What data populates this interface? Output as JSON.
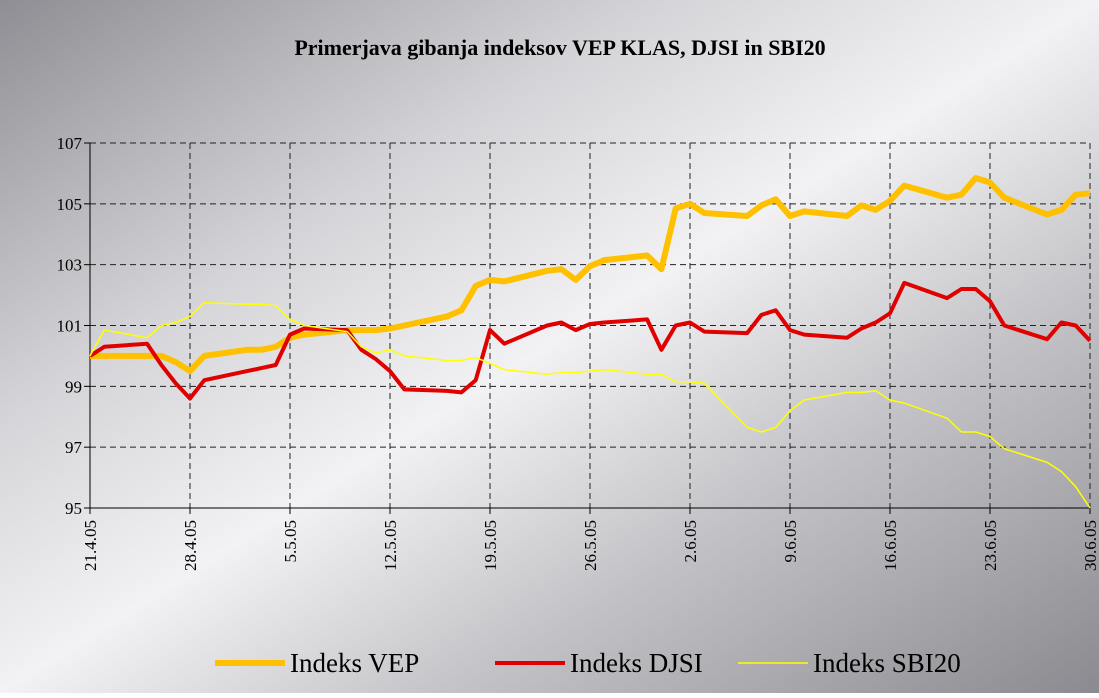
{
  "chart_data": {
    "type": "line",
    "title": "Primerjava gibanja indeksov VEP KLAS, DJSI in SBI20",
    "x": [
      "21.4.05",
      "22.4.05",
      "25.4.05",
      "26.4.05",
      "27.4.05",
      "28.4.05",
      "29.4.05",
      "2.5.05",
      "3.5.05",
      "4.5.05",
      "5.5.05",
      "6.5.05",
      "9.5.05",
      "10.5.05",
      "11.5.05",
      "12.5.05",
      "13.5.05",
      "16.5.05",
      "17.5.05",
      "18.5.05",
      "19.5.05",
      "20.5.05",
      "23.5.05",
      "24.5.05",
      "25.5.05",
      "26.5.05",
      "27.5.05",
      "30.5.05",
      "31.5.05",
      "1.6.05",
      "2.6.05",
      "3.6.05",
      "6.6.05",
      "7.6.05",
      "8.6.05",
      "9.6.05",
      "10.6.05",
      "13.6.05",
      "14.6.05",
      "15.6.05",
      "16.6.05",
      "17.6.05",
      "20.6.05",
      "21.6.05",
      "22.6.05",
      "23.6.05",
      "24.6.05",
      "27.6.05",
      "28.6.05",
      "29.6.05",
      "30.6.05"
    ],
    "series": [
      {
        "name": "Indeks VEP",
        "color": "#ffc000",
        "width": 6,
        "values": [
          100,
          100,
          100,
          100,
          99.8,
          99.5,
          100.0,
          100.2,
          100.2,
          100.3,
          100.6,
          100.7,
          100.85,
          100.85,
          100.85,
          100.9,
          101.0,
          101.3,
          101.5,
          102.3,
          102.5,
          102.45,
          102.8,
          102.85,
          102.5,
          102.95,
          103.15,
          103.3,
          102.85,
          104.85,
          105.0,
          104.7,
          104.6,
          104.95,
          105.15,
          104.6,
          104.75,
          104.6,
          104.95,
          104.8,
          105.1,
          105.6,
          105.2,
          105.3,
          105.85,
          105.7,
          105.2,
          104.65,
          104.8,
          105.3,
          105.35
        ]
      },
      {
        "name": "Indeks DJSI",
        "color": "#e00000",
        "width": 4,
        "values": [
          100,
          100.3,
          100.4,
          99.7,
          99.1,
          98.6,
          99.2,
          99.5,
          99.6,
          99.7,
          100.7,
          100.9,
          100.85,
          100.2,
          99.9,
          99.5,
          98.9,
          98.85,
          98.8,
          99.2,
          100.85,
          100.4,
          101.0,
          101.1,
          100.85,
          101.05,
          101.1,
          101.2,
          100.2,
          101.0,
          101.1,
          100.8,
          100.75,
          101.35,
          101.5,
          100.85,
          100.7,
          100.6,
          100.9,
          101.1,
          101.4,
          102.4,
          101.9,
          102.2,
          102.2,
          101.8,
          101.0,
          100.55,
          101.1,
          101.0,
          100.5
        ]
      },
      {
        "name": "Indeks SBI20",
        "color": "#ffff00",
        "width": 1.5,
        "values": [
          100,
          100.85,
          100.6,
          101.0,
          101.1,
          101.3,
          101.75,
          101.7,
          101.7,
          101.65,
          101.2,
          101.0,
          100.8,
          100.3,
          100.1,
          100.2,
          100.0,
          99.85,
          99.85,
          99.95,
          99.75,
          99.55,
          99.4,
          99.45,
          99.45,
          99.5,
          99.55,
          99.4,
          99.4,
          99.15,
          99.15,
          99.1,
          97.65,
          97.5,
          97.65,
          98.2,
          98.55,
          98.8,
          98.8,
          98.85,
          98.55,
          98.45,
          97.95,
          97.5,
          97.5,
          97.35,
          96.95,
          96.5,
          96.2,
          95.7,
          95
        ]
      }
    ],
    "xlim": [
      "21.4.05",
      "30.6.05"
    ],
    "xticks": [
      "21.4.05",
      "28.4.05",
      "5.5.05",
      "12.5.05",
      "19.5.05",
      "26.5.05",
      "2.6.05",
      "9.6.05",
      "16.6.05",
      "23.6.05",
      "30.6.05"
    ],
    "ylim": [
      95,
      107
    ],
    "yticks": [
      95,
      97,
      99,
      101,
      103,
      105,
      107
    ],
    "grid": true,
    "legend": "bottom"
  }
}
